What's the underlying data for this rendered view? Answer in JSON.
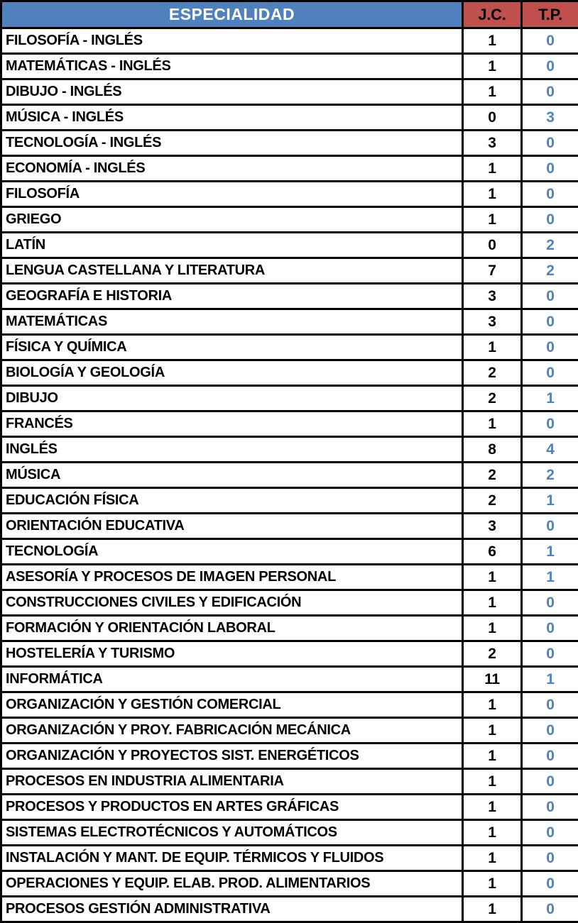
{
  "colors": {
    "header_especialidad_bg": "#4F81BD",
    "header_especialidad_text": "#FFFFFF",
    "header_counts_bg": "#C0504D",
    "header_counts_text": "#000000",
    "row_bg": "#FFFFFF",
    "row_text": "#000000",
    "tp_value_text": "#4F81BD",
    "border": "#000000"
  },
  "chart_data": {
    "type": "table",
    "title": "ESPECIALIDAD",
    "columns": [
      "ESPECIALIDAD",
      "J.C.",
      "T.P."
    ],
    "rows": [
      {
        "especialidad": "FILOSOFÍA - INGLÉS",
        "jc": 1,
        "tp": 0
      },
      {
        "especialidad": "MATEMÁTICAS - INGLÉS",
        "jc": 1,
        "tp": 0
      },
      {
        "especialidad": "DIBUJO - INGLÉS",
        "jc": 1,
        "tp": 0
      },
      {
        "especialidad": "MÚSICA - INGLÉS",
        "jc": 0,
        "tp": 3
      },
      {
        "especialidad": "TECNOLOGÍA - INGLÉS",
        "jc": 3,
        "tp": 0
      },
      {
        "especialidad": "ECONOMÍA - INGLÉS",
        "jc": 1,
        "tp": 0
      },
      {
        "especialidad": "FILOSOFÍA",
        "jc": 1,
        "tp": 0
      },
      {
        "especialidad": "GRIEGO",
        "jc": 1,
        "tp": 0
      },
      {
        "especialidad": "LATÍN",
        "jc": 0,
        "tp": 2
      },
      {
        "especialidad": "LENGUA CASTELLANA Y LITERATURA",
        "jc": 7,
        "tp": 2
      },
      {
        "especialidad": "GEOGRAFÍA E HISTORIA",
        "jc": 3,
        "tp": 0
      },
      {
        "especialidad": "MATEMÁTICAS",
        "jc": 3,
        "tp": 0
      },
      {
        "especialidad": "FÍSICA Y QUÍMICA",
        "jc": 1,
        "tp": 0
      },
      {
        "especialidad": "BIOLOGÍA Y GEOLOGÍA",
        "jc": 2,
        "tp": 0
      },
      {
        "especialidad": "DIBUJO",
        "jc": 2,
        "tp": 1
      },
      {
        "especialidad": "FRANCÉS",
        "jc": 1,
        "tp": 0
      },
      {
        "especialidad": "INGLÉS",
        "jc": 8,
        "tp": 4
      },
      {
        "especialidad": "MÚSICA",
        "jc": 2,
        "tp": 2
      },
      {
        "especialidad": "EDUCACIÓN FÍSICA",
        "jc": 2,
        "tp": 1
      },
      {
        "especialidad": "ORIENTACIÓN EDUCATIVA",
        "jc": 3,
        "tp": 0
      },
      {
        "especialidad": "TECNOLOGÍA",
        "jc": 6,
        "tp": 1
      },
      {
        "especialidad": "ASESORÍA Y PROCESOS DE IMAGEN PERSONAL",
        "jc": 1,
        "tp": 1
      },
      {
        "especialidad": "CONSTRUCCIONES CIVILES Y EDIFICACIÓN",
        "jc": 1,
        "tp": 0
      },
      {
        "especialidad": "FORMACIÓN Y ORIENTACIÓN LABORAL",
        "jc": 1,
        "tp": 0
      },
      {
        "especialidad": "HOSTELERÍA Y TURISMO",
        "jc": 2,
        "tp": 0
      },
      {
        "especialidad": "INFORMÁTICA",
        "jc": 11,
        "tp": 1
      },
      {
        "especialidad": "ORGANIZACIÓN Y GESTIÓN COMERCIAL",
        "jc": 1,
        "tp": 0
      },
      {
        "especialidad": "ORGANIZACIÓN Y PROY. FABRICACIÓN MECÁNICA",
        "jc": 1,
        "tp": 0
      },
      {
        "especialidad": "ORGANIZACIÓN Y PROYECTOS SIST. ENERGÉTICOS",
        "jc": 1,
        "tp": 0
      },
      {
        "especialidad": "PROCESOS EN INDUSTRIA ALIMENTARIA",
        "jc": 1,
        "tp": 0
      },
      {
        "especialidad": "PROCESOS Y PRODUCTOS EN ARTES GRÁFICAS",
        "jc": 1,
        "tp": 0
      },
      {
        "especialidad": "SISTEMAS ELECTROTÉCNICOS Y AUTOMÁTICOS",
        "jc": 1,
        "tp": 0
      },
      {
        "especialidad": "INSTALACIÓN Y MANT. DE EQUIP. TÉRMICOS Y FLUIDOS",
        "jc": 1,
        "tp": 0
      },
      {
        "especialidad": "OPERACIONES Y EQUIP. ELAB. PROD. ALIMENTARIOS",
        "jc": 1,
        "tp": 0
      },
      {
        "especialidad": "PROCESOS GESTIÓN ADMINISTRATIVA",
        "jc": 1,
        "tp": 0
      }
    ]
  }
}
